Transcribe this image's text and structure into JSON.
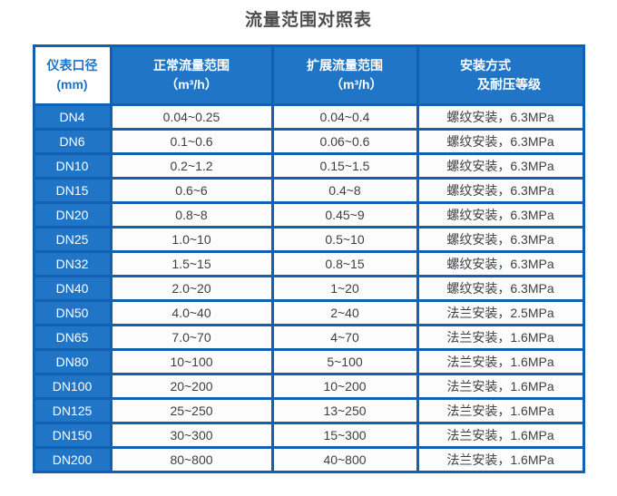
{
  "title": "流量范围对照表",
  "colors": {
    "cell_blue": "#2175c7",
    "border_blue": "#1160b2",
    "header_text": "#ffffff",
    "corner_cell_text": "#1e73c5",
    "data_text": "#3f3f3f",
    "title_text": "#4d4d4d"
  },
  "chart_data": {
    "type": "table",
    "title": "流量范围对照表",
    "columns": [
      {
        "line1": "仪表口径",
        "line2": "(mm)"
      },
      {
        "line1": "正常流量范围",
        "line2": "（m³/h）"
      },
      {
        "line1": "扩展流量范围",
        "line2": "（m³/h）"
      },
      {
        "line1": "安装方式",
        "line2": "及耐压等级"
      }
    ],
    "rows": [
      [
        "DN4",
        "0.04~0.25",
        "0.04~0.4",
        "螺纹安装，6.3MPa"
      ],
      [
        "DN6",
        "0.1~0.6",
        "0.06~0.6",
        "螺纹安装，6.3MPa"
      ],
      [
        "DN10",
        "0.2~1.2",
        "0.15~1.5",
        "螺纹安装，6.3MPa"
      ],
      [
        "DN15",
        "0.6~6",
        "0.4~8",
        "螺纹安装，6.3MPa"
      ],
      [
        "DN20",
        "0.8~8",
        "0.45~9",
        "螺纹安装，6.3MPa"
      ],
      [
        "DN25",
        "1.0~10",
        "0.5~10",
        "螺纹安装，6.3MPa"
      ],
      [
        "DN32",
        "1.5~15",
        "0.8~15",
        "螺纹安装，6.3MPa"
      ],
      [
        "DN40",
        "2.0~20",
        "1~20",
        "螺纹安装，6.3MPa"
      ],
      [
        "DN50",
        "4.0~40",
        "2~40",
        "法兰安装，2.5MPa"
      ],
      [
        "DN65",
        "7.0~70",
        "4~70",
        "法兰安装，1.6MPa"
      ],
      [
        "DN80",
        "10~100",
        "5~100",
        "法兰安装，1.6MPa"
      ],
      [
        "DN100",
        "20~200",
        "10~200",
        "法兰安装，1.6MPa"
      ],
      [
        "DN125",
        "25~250",
        "13~250",
        "法兰安装，1.6MPa"
      ],
      [
        "DN150",
        "30~300",
        "15~300",
        "法兰安装，1.6MPa"
      ],
      [
        "DN200",
        "80~800",
        "40~800",
        "法兰安装，1.6MPa"
      ]
    ]
  }
}
